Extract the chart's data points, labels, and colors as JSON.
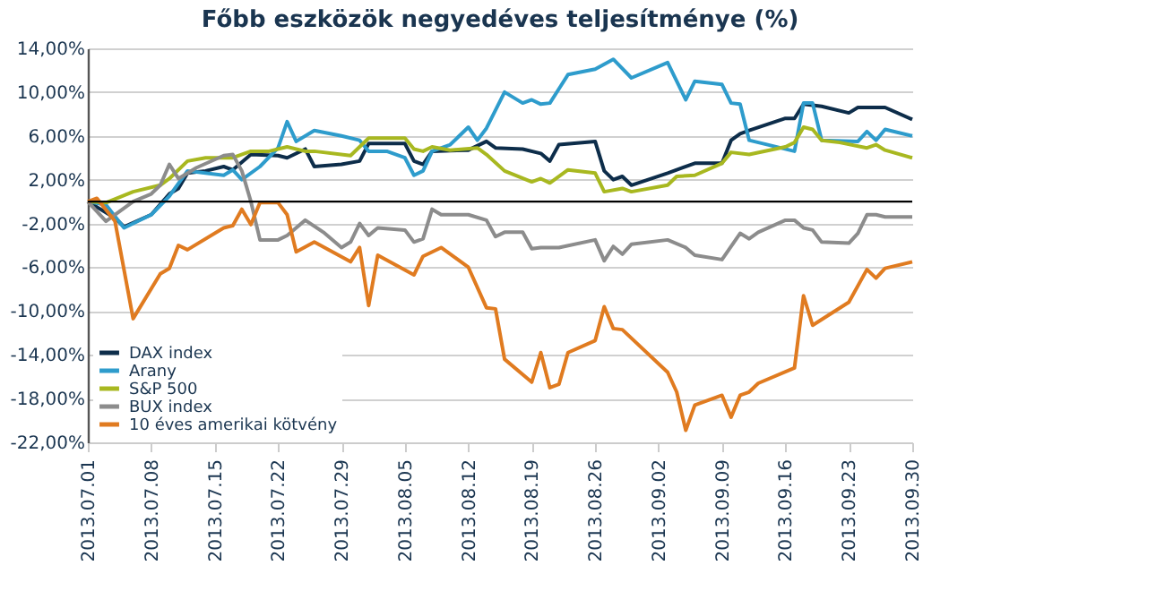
{
  "chart_data": {
    "type": "line",
    "title": "Főbb eszközök negyedéves teljesítménye (%)",
    "xlim": [
      "2013-07-01",
      "2013-09-30"
    ],
    "xticks": [
      {
        "value": "2013-07-01",
        "label": "2013.07.01"
      },
      {
        "value": "2013-07-08",
        "label": "2013.07.08"
      },
      {
        "value": "2013-07-15",
        "label": "2013.07.15"
      },
      {
        "value": "2013-07-22",
        "label": "2013.07.22"
      },
      {
        "value": "2013-07-29",
        "label": "2013.07.29"
      },
      {
        "value": "2013-08-05",
        "label": "2013.08.05"
      },
      {
        "value": "2013-08-12",
        "label": "2013.08.12"
      },
      {
        "value": "2013-08-19",
        "label": "2013.08.19"
      },
      {
        "value": "2013-08-26",
        "label": "2013.08.26"
      },
      {
        "value": "2013-09-02",
        "label": "2013.09.02"
      },
      {
        "value": "2013-09-09",
        "label": "2013.09.09"
      },
      {
        "value": "2013-09-16",
        "label": "2013.09.16"
      },
      {
        "value": "2013-09-23",
        "label": "2013.09.23"
      },
      {
        "value": "2013-09-30",
        "label": "2013.09.30"
      }
    ],
    "ylim": [
      -22,
      14
    ],
    "yticks": [
      {
        "value": -22,
        "label": "-22,00%"
      },
      {
        "value": -18,
        "label": "-18,00%"
      },
      {
        "value": -14,
        "label": "-14,00%"
      },
      {
        "value": -10,
        "label": "-10,00%"
      },
      {
        "value": -6,
        "label": "-6,00%"
      },
      {
        "value": -2,
        "label": "-2,00%"
      },
      {
        "value": 2,
        "label": "2,00%"
      },
      {
        "value": 6,
        "label": "6,00%"
      },
      {
        "value": 10,
        "label": "10,00%"
      },
      {
        "value": 14,
        "label": "14,00%"
      }
    ],
    "grid": "y",
    "legend": "bottom left",
    "marker": "none",
    "line_style": "solid",
    "ref_lines": [
      {
        "axis": "y",
        "value": 0,
        "color": "#000000"
      }
    ],
    "series": [
      {
        "name": "DAX index",
        "color": "#0d2d4a",
        "x": [
          "2013-07-01",
          "2013-07-04",
          "2013-07-05",
          "2013-07-08",
          "2013-07-10",
          "2013-07-11",
          "2013-07-12",
          "2013-07-14",
          "2013-07-16",
          "2013-07-17",
          "2013-07-19",
          "2013-07-22",
          "2013-07-23",
          "2013-07-25",
          "2013-07-26",
          "2013-07-29",
          "2013-07-31",
          "2013-08-01",
          "2013-08-05",
          "2013-08-06",
          "2013-08-07",
          "2013-08-08",
          "2013-08-12",
          "2013-08-14",
          "2013-08-15",
          "2013-08-18",
          "2013-08-20",
          "2013-08-21",
          "2013-08-22",
          "2013-08-26",
          "2013-08-27",
          "2013-08-28",
          "2013-08-29",
          "2013-08-30",
          "2013-09-03",
          "2013-09-06",
          "2013-09-09",
          "2013-09-10",
          "2013-09-11",
          "2013-09-12",
          "2013-09-16",
          "2013-09-17",
          "2013-09-18",
          "2013-09-20",
          "2013-09-23",
          "2013-09-24",
          "2013-09-27",
          "2013-09-30"
        ],
        "values": [
          0,
          -1.5,
          -2.3,
          -1.2,
          0.7,
          1.2,
          2.6,
          2.8,
          3.2,
          2.9,
          4.3,
          4.2,
          4.0,
          4.8,
          3.2,
          3.4,
          3.7,
          5.3,
          5.3,
          3.7,
          3.4,
          4.6,
          4.7,
          5.5,
          4.9,
          4.8,
          4.4,
          3.7,
          5.2,
          5.5,
          2.8,
          2.0,
          2.3,
          1.5,
          2.6,
          3.5,
          3.5,
          5.6,
          6.2,
          6.5,
          7.6,
          7.6,
          8.9,
          8.7,
          8.1,
          8.6,
          8.6,
          7.5
        ]
      },
      {
        "name": "Arany",
        "color": "#2e9ccc",
        "x": [
          "2013-07-01",
          "2013-07-03",
          "2013-07-05",
          "2013-07-08",
          "2013-07-10",
          "2013-07-12",
          "2013-07-16",
          "2013-07-17",
          "2013-07-18",
          "2013-07-20",
          "2013-07-22",
          "2013-07-23",
          "2013-07-24",
          "2013-07-26",
          "2013-07-29",
          "2013-07-31",
          "2013-08-01",
          "2013-08-03",
          "2013-08-05",
          "2013-08-06",
          "2013-08-07",
          "2013-08-08",
          "2013-08-10",
          "2013-08-12",
          "2013-08-13",
          "2013-08-14",
          "2013-08-16",
          "2013-08-18",
          "2013-08-19",
          "2013-08-20",
          "2013-08-21",
          "2013-08-22",
          "2013-08-23",
          "2013-08-26",
          "2013-08-28",
          "2013-08-30",
          "2013-09-03",
          "2013-09-05",
          "2013-09-06",
          "2013-09-09",
          "2013-09-10",
          "2013-09-11",
          "2013-09-12",
          "2013-09-17",
          "2013-09-18",
          "2013-09-19",
          "2013-09-20",
          "2013-09-24",
          "2013-09-25",
          "2013-09-26",
          "2013-09-27",
          "2013-09-30"
        ],
        "values": [
          0,
          -0.3,
          -2.4,
          -1.2,
          0.5,
          2.8,
          2.4,
          2.9,
          2.0,
          3.2,
          4.9,
          7.3,
          5.5,
          6.5,
          6.0,
          5.6,
          4.6,
          4.6,
          4.0,
          2.4,
          2.8,
          4.6,
          5.2,
          6.8,
          5.6,
          6.7,
          10.0,
          9.0,
          9.3,
          8.9,
          9.0,
          10.3,
          11.6,
          12.1,
          13.0,
          11.3,
          12.7,
          9.3,
          11.0,
          10.7,
          9.0,
          8.9,
          5.6,
          4.6,
          9.0,
          9.0,
          5.6,
          5.5,
          6.4,
          5.6,
          6.6,
          6.0
        ]
      },
      {
        "name": "S&P 500",
        "color": "#a8b820",
        "x": [
          "2013-07-01",
          "2013-07-03",
          "2013-07-06",
          "2013-07-09",
          "2013-07-10",
          "2013-07-12",
          "2013-07-14",
          "2013-07-17",
          "2013-07-19",
          "2013-07-21",
          "2013-07-23",
          "2013-07-25",
          "2013-07-26",
          "2013-07-30",
          "2013-08-01",
          "2013-08-05",
          "2013-08-06",
          "2013-08-07",
          "2013-08-08",
          "2013-08-10",
          "2013-08-13",
          "2013-08-14",
          "2013-08-16",
          "2013-08-19",
          "2013-08-20",
          "2013-08-21",
          "2013-08-23",
          "2013-08-26",
          "2013-08-27",
          "2013-08-29",
          "2013-08-30",
          "2013-09-03",
          "2013-09-04",
          "2013-09-06",
          "2013-09-09",
          "2013-09-10",
          "2013-09-12",
          "2013-09-16",
          "2013-09-17",
          "2013-09-18",
          "2013-09-19",
          "2013-09-20",
          "2013-09-22",
          "2013-09-25",
          "2013-09-26",
          "2013-09-27",
          "2013-09-30"
        ],
        "values": [
          0,
          -0.1,
          0.9,
          1.5,
          2.1,
          3.7,
          4.0,
          4.0,
          4.6,
          4.6,
          5.0,
          4.6,
          4.6,
          4.2,
          5.8,
          5.8,
          4.8,
          4.6,
          5.0,
          4.7,
          4.9,
          4.3,
          2.8,
          1.8,
          2.1,
          1.7,
          2.9,
          2.6,
          0.9,
          1.2,
          0.9,
          1.5,
          2.3,
          2.4,
          3.5,
          4.5,
          4.3,
          5.0,
          5.4,
          6.8,
          6.6,
          5.6,
          5.4,
          4.9,
          5.2,
          4.7,
          4.0
        ]
      },
      {
        "name": "BUX index",
        "color": "#8c8c8c",
        "x": [
          "2013-07-01",
          "2013-07-03",
          "2013-07-06",
          "2013-07-08",
          "2013-07-09",
          "2013-07-10",
          "2013-07-11",
          "2013-07-13",
          "2013-07-16",
          "2013-07-17",
          "2013-07-18",
          "2013-07-19",
          "2013-07-20",
          "2013-07-22",
          "2013-07-23",
          "2013-07-25",
          "2013-07-27",
          "2013-07-29",
          "2013-07-30",
          "2013-07-31",
          "2013-08-01",
          "2013-08-02",
          "2013-08-05",
          "2013-08-06",
          "2013-08-07",
          "2013-08-08",
          "2013-08-09",
          "2013-08-12",
          "2013-08-14",
          "2013-08-15",
          "2013-08-16",
          "2013-08-18",
          "2013-08-19",
          "2013-08-20",
          "2013-08-22",
          "2013-08-26",
          "2013-08-27",
          "2013-08-28",
          "2013-08-29",
          "2013-08-30",
          "2013-09-03",
          "2013-09-05",
          "2013-09-06",
          "2013-09-09",
          "2013-09-11",
          "2013-09-12",
          "2013-09-13",
          "2013-09-16",
          "2013-09-17",
          "2013-09-18",
          "2013-09-19",
          "2013-09-20",
          "2013-09-23",
          "2013-09-24",
          "2013-09-25",
          "2013-09-26",
          "2013-09-27",
          "2013-09-30"
        ],
        "values": [
          0,
          -1.8,
          0,
          0.7,
          1.5,
          3.4,
          2.1,
          3.1,
          4.2,
          4.3,
          2.8,
          0,
          -3.5,
          -3.5,
          -3.1,
          -1.7,
          -2.8,
          -4.2,
          -3.7,
          -2.0,
          -3.1,
          -2.4,
          -2.6,
          -3.7,
          -3.4,
          -0.7,
          -1.2,
          -1.2,
          -1.7,
          -3.2,
          -2.8,
          -2.8,
          -4.3,
          -4.2,
          -4.2,
          -3.5,
          -5.4,
          -4.1,
          -4.8,
          -3.9,
          -3.5,
          -4.2,
          -4.9,
          -5.3,
          -2.9,
          -3.4,
          -2.8,
          -1.7,
          -1.7,
          -2.4,
          -2.6,
          -3.7,
          -3.8,
          -2.9,
          -1.2,
          -1.2,
          -1.4,
          -1.4
        ]
      },
      {
        "name": "10 éves amerikai kötvény",
        "color": "#e07b20",
        "x": [
          "2013-07-01",
          "2013-07-02",
          "2013-07-04",
          "2013-07-06",
          "2013-07-09",
          "2013-07-10",
          "2013-07-11",
          "2013-07-12",
          "2013-07-16",
          "2013-07-17",
          "2013-07-18",
          "2013-07-19",
          "2013-07-20",
          "2013-07-22",
          "2013-07-23",
          "2013-07-24",
          "2013-07-26",
          "2013-07-30",
          "2013-07-31",
          "2013-08-01",
          "2013-08-02",
          "2013-08-06",
          "2013-08-07",
          "2013-08-09",
          "2013-08-12",
          "2013-08-14",
          "2013-08-15",
          "2013-08-16",
          "2013-08-19",
          "2013-08-20",
          "2013-08-21",
          "2013-08-22",
          "2013-08-23",
          "2013-08-26",
          "2013-08-27",
          "2013-08-28",
          "2013-08-29",
          "2013-09-03",
          "2013-09-04",
          "2013-09-05",
          "2013-09-06",
          "2013-09-09",
          "2013-09-10",
          "2013-09-11",
          "2013-09-12",
          "2013-09-13",
          "2013-09-17",
          "2013-09-18",
          "2013-09-19",
          "2013-09-23",
          "2013-09-25",
          "2013-09-26",
          "2013-09-27",
          "2013-09-30"
        ],
        "values": [
          0,
          0.3,
          -1.8,
          -10.7,
          -6.6,
          -6.1,
          -4.0,
          -4.4,
          -2.4,
          -2.2,
          -0.7,
          -2.1,
          -0.1,
          -0.1,
          -1.2,
          -4.6,
          -3.7,
          -5.5,
          -4.2,
          -9.5,
          -4.9,
          -6.7,
          -5.0,
          -4.2,
          -6.0,
          -9.7,
          -9.8,
          -14.4,
          -16.5,
          -13.8,
          -17.0,
          -16.7,
          -13.8,
          -12.7,
          -9.6,
          -11.6,
          -11.7,
          -15.6,
          -17.4,
          -20.9,
          -18.6,
          -17.7,
          -19.7,
          -17.7,
          -17.4,
          -16.6,
          -15.2,
          -8.6,
          -11.3,
          -9.2,
          -6.2,
          -7.0,
          -6.1,
          -5.5
        ]
      }
    ]
  }
}
